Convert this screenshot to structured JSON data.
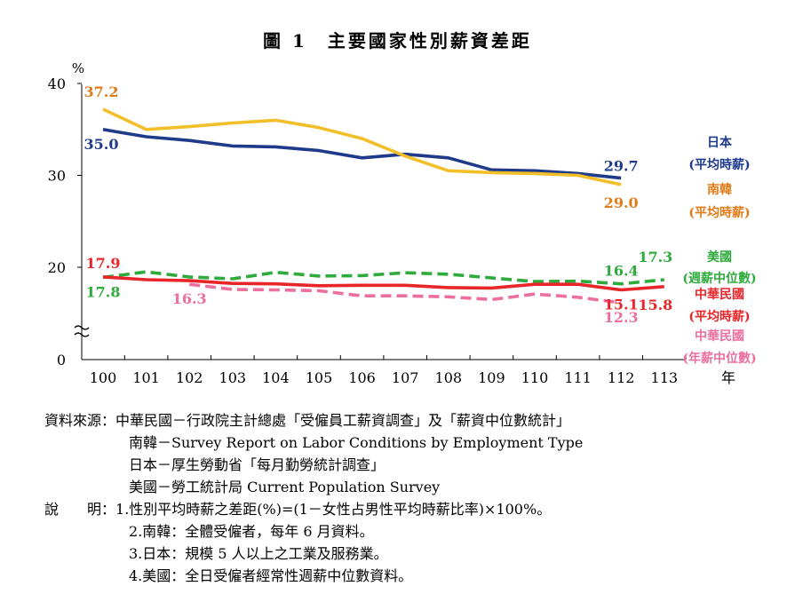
{
  "title": "圖 1　主要國家性別薪資差距",
  "chart_data": {
    "type": "line",
    "ylabel": "%",
    "xlabel": "年",
    "ylim": [
      0,
      40
    ],
    "y_axis_break": true,
    "y_ticks": [
      "0",
      "20",
      "30",
      "40"
    ],
    "categories": [
      "100",
      "101",
      "102",
      "103",
      "104",
      "105",
      "106",
      "107",
      "108",
      "109",
      "110",
      "111",
      "112",
      "113"
    ],
    "legend_position": "right",
    "series": [
      {
        "name": "日本 (平均時薪)",
        "label_lines": [
          "日本",
          "(平均時薪)"
        ],
        "color": "#1f3a8a",
        "style": "solid",
        "values": [
          35.0,
          34.2,
          33.8,
          33.2,
          33.1,
          32.7,
          31.9,
          32.3,
          31.9,
          30.6,
          30.5,
          30.2,
          29.7,
          null
        ],
        "labels": [
          {
            "index": 0,
            "text": "35.0"
          },
          {
            "index": 12,
            "text": "29.7"
          }
        ]
      },
      {
        "name": "南韓 (平均時薪)",
        "label_lines": [
          "南韓",
          "(平均時薪)"
        ],
        "color": "#f2bf2a",
        "style": "solid",
        "label_color": "#e07b1a",
        "values": [
          37.2,
          35.0,
          35.3,
          35.7,
          36.0,
          35.2,
          34.0,
          32.1,
          30.5,
          30.3,
          30.2,
          30.0,
          29.0,
          null
        ],
        "labels": [
          {
            "index": 0,
            "text": "37.2"
          },
          {
            "index": 12,
            "text": "29.0"
          }
        ]
      },
      {
        "name": "美國 (週薪中位數)",
        "label_lines": [
          "美國",
          "(週薪中位數)"
        ],
        "color": "#2eab3c",
        "style": "dashed",
        "values": [
          17.8,
          19.0,
          17.9,
          17.5,
          18.9,
          18.1,
          18.2,
          18.8,
          18.5,
          17.7,
          16.9,
          17.0,
          16.4,
          17.3
        ],
        "labels": [
          {
            "index": 0,
            "text": "17.8"
          },
          {
            "index": 12,
            "text": "16.4"
          },
          {
            "index": 13,
            "text": "17.3"
          }
        ]
      },
      {
        "name": "中華民國 (平均時薪)",
        "label_lines": [
          "中華民國",
          "(平均時薪)"
        ],
        "color": "#e8262a",
        "style": "solid",
        "values": [
          17.9,
          17.3,
          17.1,
          16.5,
          16.4,
          16.0,
          16.1,
          16.1,
          15.6,
          15.5,
          16.3,
          16.3,
          15.1,
          15.8
        ],
        "labels": [
          {
            "index": 0,
            "text": "17.9"
          },
          {
            "index": 12,
            "text": "15.1"
          },
          {
            "index": 13,
            "text": "15.8"
          }
        ]
      },
      {
        "name": "中華民國 (年薪中位數)",
        "label_lines": [
          "中華民國",
          "(年薪中位數)"
        ],
        "color": "#ec6fa0",
        "style": "dashed",
        "values": [
          null,
          null,
          16.3,
          15.2,
          15.1,
          14.9,
          13.8,
          13.8,
          13.6,
          13.0,
          14.2,
          13.5,
          12.3,
          null
        ],
        "labels": [
          {
            "index": 2,
            "text": "16.3"
          },
          {
            "index": 12,
            "text": "12.3"
          }
        ]
      }
    ]
  },
  "notes": {
    "sources_label": "資料來源：",
    "sources": [
      "中華民國－行政院主計總處「受僱員工薪資調查」及「薪資中位數統計」",
      "南韓－Survey Report on Labor Conditions by Employment Type",
      "日本－厚生勞動省「每月勤勞統計調查」",
      "美國－勞工統計局 Current Population Survey"
    ],
    "explain_label": "說　　明：",
    "explanations": [
      "1.性別平均時薪之差距(%)=(1－女性占男性平均時薪比率)×100%。",
      "2.南韓：全體受僱者，每年 6 月資料。",
      "3.日本：規模 5 人以上之工業及服務業。",
      "4.美國：全日受僱者經常性週薪中位數資料。"
    ]
  }
}
